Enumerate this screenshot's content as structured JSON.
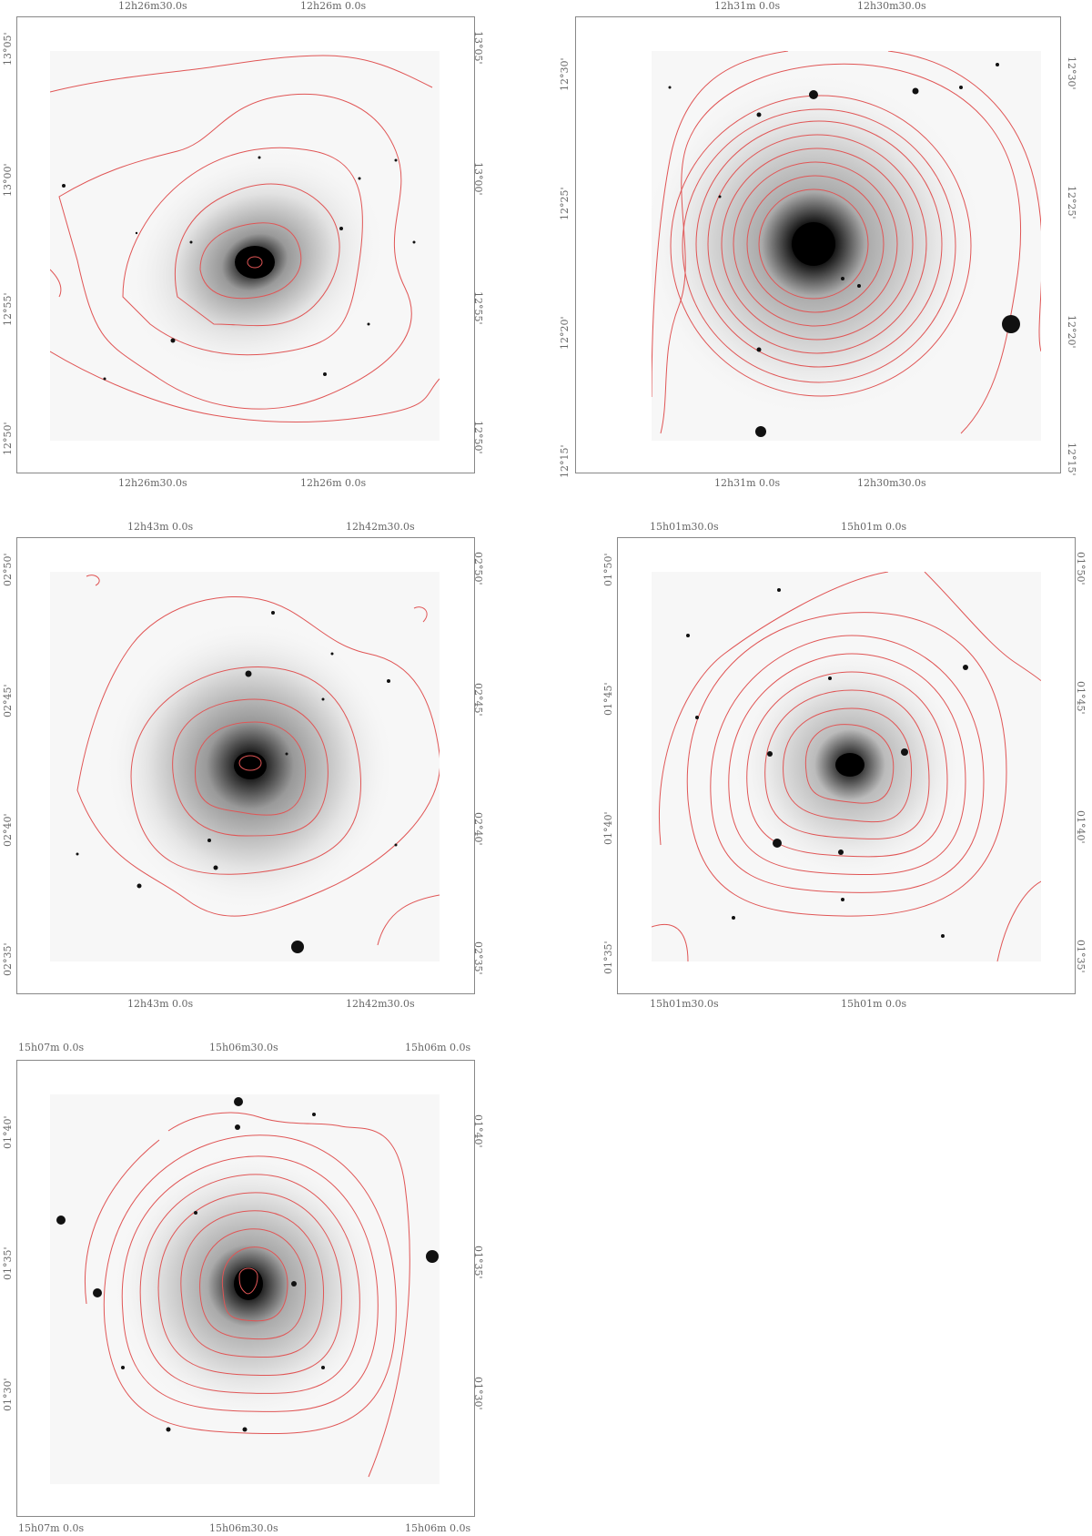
{
  "panels": [
    {
      "top_ra": [
        "12h26m30.0s",
        "12h26m 0.0s"
      ],
      "bottom_ra": [
        "12h26m30.0s",
        "12h26m 0.0s"
      ],
      "dec": [
        "13°05'",
        "13°00'",
        "12°55'",
        "12°50'"
      ],
      "contour_color": "#e05555"
    },
    {
      "top_ra": [
        "12h31m 0.0s",
        "12h30m30.0s"
      ],
      "bottom_ra": [
        "12h31m 0.0s",
        "12h30m30.0s"
      ],
      "dec": [
        "12°30'",
        "12°25'",
        "12°20'",
        "12°15'"
      ],
      "contour_color": "#e05555"
    },
    {
      "top_ra": [
        "12h43m 0.0s",
        "12h42m30.0s"
      ],
      "bottom_ra": [
        "12h43m 0.0s",
        "12h42m30.0s"
      ],
      "dec": [
        "02°50'",
        "02°45'",
        "02°40'",
        "02°35'"
      ],
      "contour_color": "#e05555"
    },
    {
      "top_ra": [
        "15h01m30.0s",
        "15h01m 0.0s"
      ],
      "bottom_ra": [
        "15h01m30.0s",
        "15h01m 0.0s"
      ],
      "dec": [
        "01°50'",
        "01°45'",
        "01°40'",
        "01°35'"
      ],
      "contour_color": "#e05555"
    },
    {
      "top_ra": [
        "15h07m 0.0s",
        "15h06m30.0s",
        "15h06m 0.0s"
      ],
      "bottom_ra": [
        "15h07m 0.0s",
        "15h06m30.0s",
        "15h06m 0.0s"
      ],
      "dec": [
        "01°40'",
        "01°35'",
        "01°30'"
      ],
      "contour_color": "#e05555"
    }
  ]
}
